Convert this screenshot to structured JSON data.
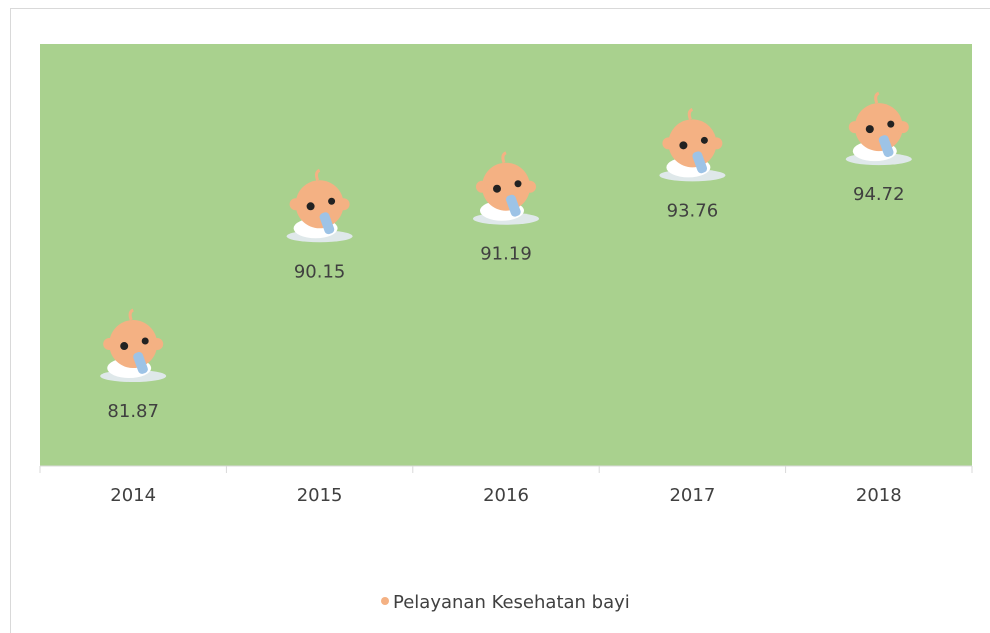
{
  "chart_data": {
    "type": "scatter",
    "categories": [
      "2014",
      "2015",
      "2016",
      "2017",
      "2018"
    ],
    "series": [
      {
        "name": "Pelayanan Kesehatan bayi",
        "color": "#f4b183",
        "values": [
          81.87,
          90.15,
          91.19,
          93.76,
          94.72
        ]
      }
    ],
    "ylim": [
      75,
      100
    ],
    "plot_background": "#a9d18e",
    "legend": "bottom"
  }
}
